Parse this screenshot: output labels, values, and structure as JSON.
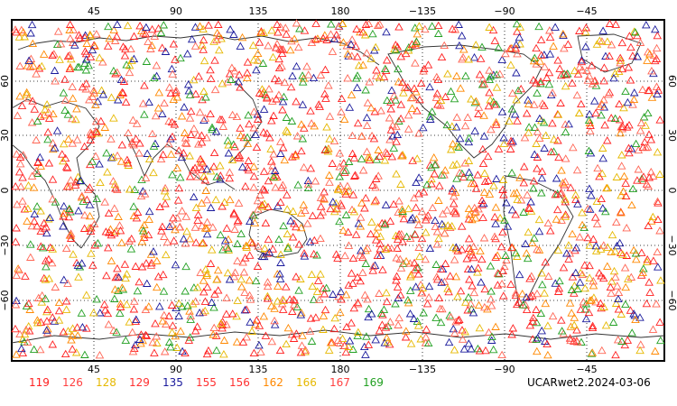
{
  "map": {
    "projection": "cylindrical equidistant, 0–360 longitude",
    "grid": "dotted, every 45° longitude and 30° latitude",
    "top_ticks": [
      "45",
      "90",
      "135",
      "180",
      "−135",
      "−90",
      "−45"
    ],
    "bottom_ticks": [
      "45",
      "90",
      "135",
      "180",
      "−135",
      "−90",
      "−45"
    ],
    "left_ticks": [
      "60",
      "30",
      "0",
      "−30",
      "−60"
    ],
    "right_ticks": [
      "60",
      "30",
      "0",
      "−30",
      "−60"
    ],
    "marker": "open triangle",
    "marker_colors": {
      "red": "#ff2020",
      "salmon": "#ff6655",
      "orange": "#ff8800",
      "yellow": "#e6b800",
      "navy": "#1a1a9c",
      "green": "#22a022"
    }
  },
  "legend": [
    {
      "label": "119",
      "color": "#ff2020"
    },
    {
      "label": "126",
      "color": "#ff4040"
    },
    {
      "label": "128",
      "color": "#e6b800"
    },
    {
      "label": "129",
      "color": "#ff3030"
    },
    {
      "label": "135",
      "color": "#1a1a9c"
    },
    {
      "label": "155",
      "color": "#ff3030"
    },
    {
      "label": "156",
      "color": "#ff3030"
    },
    {
      "label": "162",
      "color": "#ff8800"
    },
    {
      "label": "166",
      "color": "#e6b800"
    },
    {
      "label": "167",
      "color": "#ff4040"
    },
    {
      "label": "169",
      "color": "#22a022"
    }
  ],
  "stamp": "UCARwet2.2024-03-06"
}
